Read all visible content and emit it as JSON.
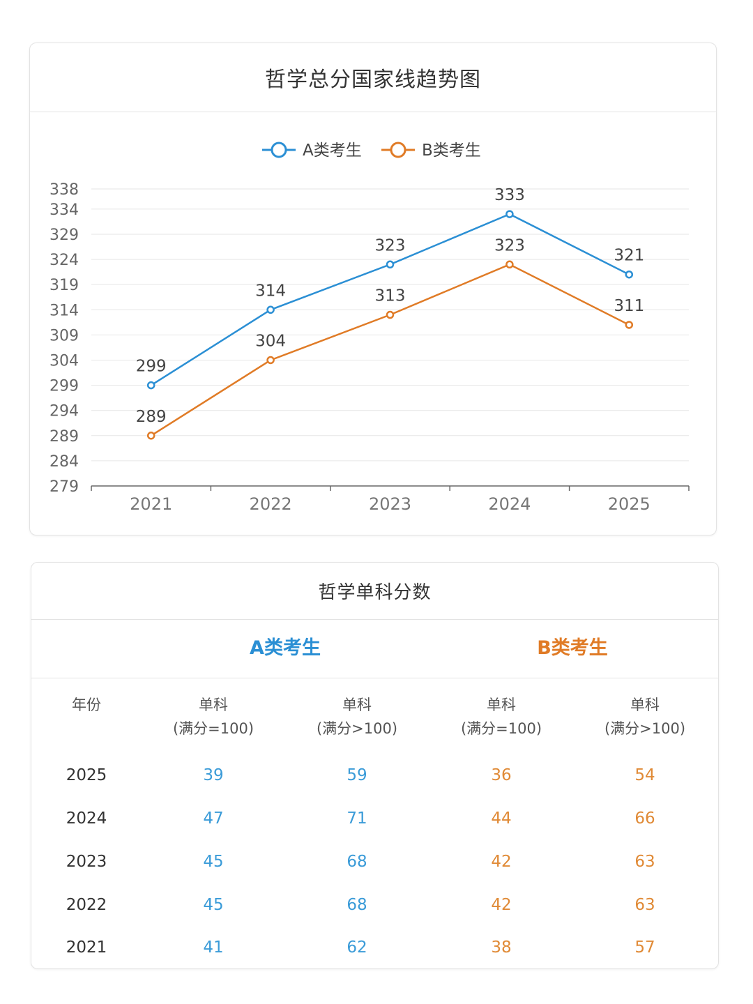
{
  "line_chart": {
    "title": "哲学总分国家线趋势图",
    "legend": [
      {
        "name": "A类考生",
        "color": "#2b8fd4"
      },
      {
        "name": "B类考生",
        "color": "#e07b26"
      }
    ],
    "y_ticks": [
      "338",
      "334",
      "329",
      "324",
      "319",
      "314",
      "309",
      "304",
      "299",
      "294",
      "289",
      "284",
      "279"
    ]
  },
  "chart_data": {
    "type": "line",
    "title": "哲学总分国家线趋势图",
    "categories": [
      "2021",
      "2022",
      "2023",
      "2024",
      "2025"
    ],
    "series": [
      {
        "name": "A类考生",
        "color": "#2b8fd4",
        "values": [
          299,
          314,
          323,
          333,
          321
        ]
      },
      {
        "name": "B类考生",
        "color": "#e07b26",
        "values": [
          289,
          304,
          313,
          323,
          311
        ]
      }
    ],
    "ylim": [
      279,
      338
    ],
    "xlabel": "",
    "ylabel": "",
    "grid": true,
    "legend_position": "top-center"
  },
  "table": {
    "title": "哲学单科分数",
    "groups": {
      "a": "A类考生",
      "b": "B类考生"
    },
    "headers": {
      "year": "年份",
      "a1_l1": "单科",
      "a1_l2": "(满分=100)",
      "a2_l1": "单科",
      "a2_l2": "(满分>100)",
      "b1_l1": "单科",
      "b1_l2": "(满分=100)",
      "b2_l1": "单科",
      "b2_l2": "(满分>100)"
    },
    "rows": [
      {
        "year": "2025",
        "a1": "39",
        "a2": "59",
        "b1": "36",
        "b2": "54"
      },
      {
        "year": "2024",
        "a1": "47",
        "a2": "71",
        "b1": "44",
        "b2": "66"
      },
      {
        "year": "2023",
        "a1": "45",
        "a2": "68",
        "b1": "42",
        "b2": "63"
      },
      {
        "year": "2022",
        "a1": "45",
        "a2": "68",
        "b1": "42",
        "b2": "63"
      },
      {
        "year": "2021",
        "a1": "41",
        "a2": "62",
        "b1": "38",
        "b2": "57"
      }
    ]
  }
}
